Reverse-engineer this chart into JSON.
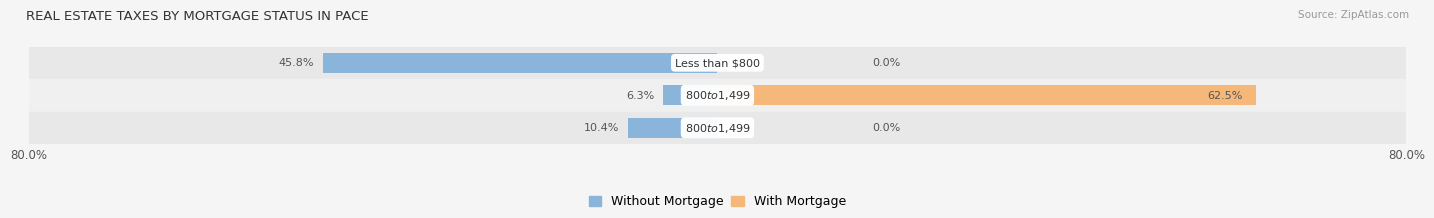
{
  "title": "REAL ESTATE TAXES BY MORTGAGE STATUS IN PACE",
  "source": "Source: ZipAtlas.com",
  "rows": [
    {
      "label": "Less than $800",
      "without_mortgage": 45.8,
      "with_mortgage": 0.0
    },
    {
      "label": "$800 to $1,499",
      "without_mortgage": 6.3,
      "with_mortgage": 62.5
    },
    {
      "label": "$800 to $1,499",
      "without_mortgage": 10.4,
      "with_mortgage": 0.0
    }
  ],
  "xlim": [
    -80.0,
    80.0
  ],
  "xticks": [
    -80.0,
    80.0
  ],
  "color_without": "#8ab4d9",
  "color_with": "#f5b87a",
  "bar_height": 0.62,
  "row_bg_color": "#e8e8e8",
  "background_color": "#f5f5f5",
  "title_fontsize": 9.5,
  "label_fontsize": 8.0,
  "tick_fontsize": 8.5,
  "legend_fontsize": 9.0
}
